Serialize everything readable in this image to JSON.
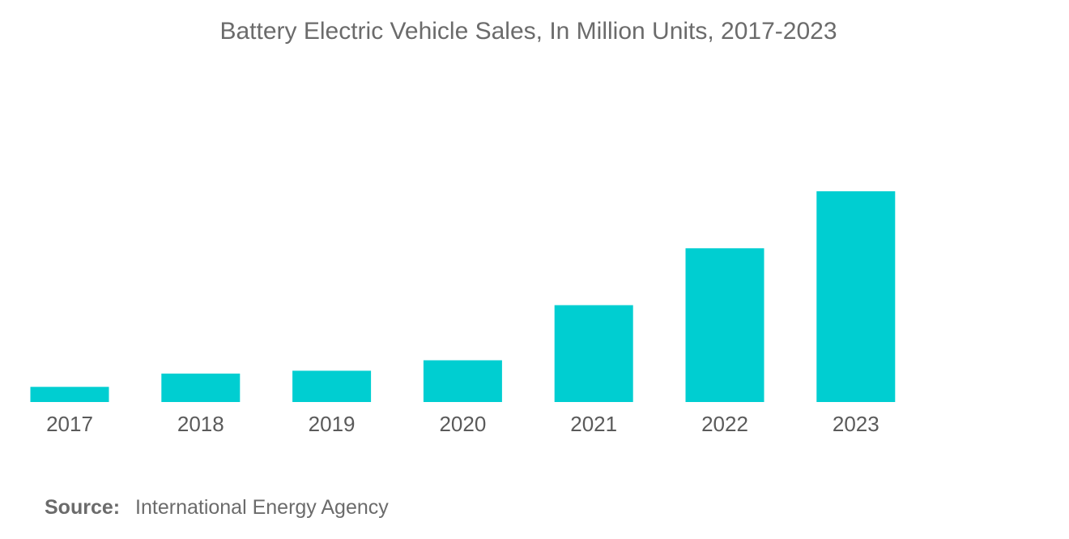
{
  "chart_data": {
    "type": "bar",
    "title": "Battery Electric Vehicle Sales, In Million Units, 2017-2023",
    "categories": [
      "2017",
      "2018",
      "2019",
      "2020",
      "2021",
      "2022",
      "2023"
    ],
    "values": [
      0.8,
      1.5,
      1.65,
      2.2,
      5.1,
      8.1,
      11.1
    ],
    "xlabel": "",
    "ylabel": "",
    "ylim": [
      0,
      12
    ],
    "grid": false,
    "legend": "none",
    "bar_color": "#00ced1"
  },
  "source": {
    "label": "Source:",
    "text": "International Energy Agency"
  }
}
